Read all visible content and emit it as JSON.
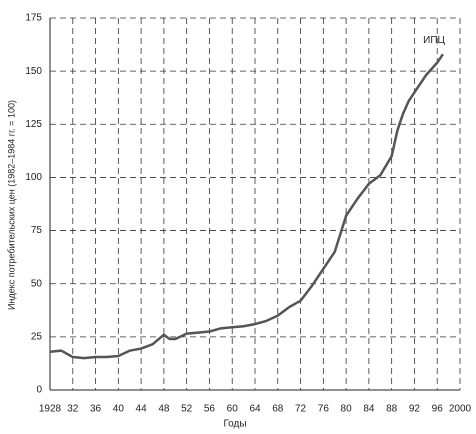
{
  "chart_data": {
    "type": "line",
    "xlabel": "Годы",
    "ylabel": "Индекс потребительских цен (1982–1984 гг. = 100)",
    "series": [
      {
        "name": "ИПЦ",
        "color": "#555555",
        "x": [
          1928,
          1930,
          1932,
          1934,
          1936,
          1938,
          1940,
          1942,
          1944,
          1946,
          1948,
          1949,
          1950,
          1952,
          1954,
          1956,
          1958,
          1960,
          1962,
          1964,
          1966,
          1968,
          1970,
          1972,
          1974,
          1976,
          1978,
          1980,
          1982,
          1984,
          1986,
          1988,
          1989,
          1990,
          1991,
          1992,
          1994,
          1996,
          1997
        ],
        "values": [
          18,
          18.5,
          15.5,
          15,
          15.5,
          15.5,
          16,
          18.5,
          19.5,
          21.5,
          26,
          24,
          24,
          26.5,
          27,
          27.5,
          29,
          29.5,
          30,
          31,
          32.5,
          35,
          39,
          42,
          49,
          57,
          65,
          82,
          90,
          97,
          101,
          110,
          122,
          130,
          136,
          140,
          148,
          154,
          158
        ]
      }
    ],
    "xlim": [
      1928,
      2000
    ],
    "xticks": [
      1928,
      {
        "value": 1932,
        "label": "32"
      },
      {
        "value": 1936,
        "label": "36"
      },
      {
        "value": 1940,
        "label": "40"
      },
      {
        "value": 1944,
        "label": "44"
      },
      {
        "value": 1948,
        "label": "48"
      },
      {
        "value": 1952,
        "label": "52"
      },
      {
        "value": 1956,
        "label": "56"
      },
      {
        "value": 1960,
        "label": "60"
      },
      {
        "value": 1964,
        "label": "64"
      },
      {
        "value": 1968,
        "label": "68"
      },
      {
        "value": 1972,
        "label": "72"
      },
      {
        "value": 1976,
        "label": "76"
      },
      {
        "value": 1980,
        "label": "80"
      },
      {
        "value": 1984,
        "label": "84"
      },
      {
        "value": 1988,
        "label": "88"
      },
      {
        "value": 1992,
        "label": "92"
      },
      {
        "value": 1996,
        "label": "96"
      },
      2000
    ],
    "ylim": [
      0,
      175
    ],
    "yticks": [
      0,
      25,
      50,
      75,
      100,
      125,
      150,
      175
    ],
    "grid": true
  }
}
